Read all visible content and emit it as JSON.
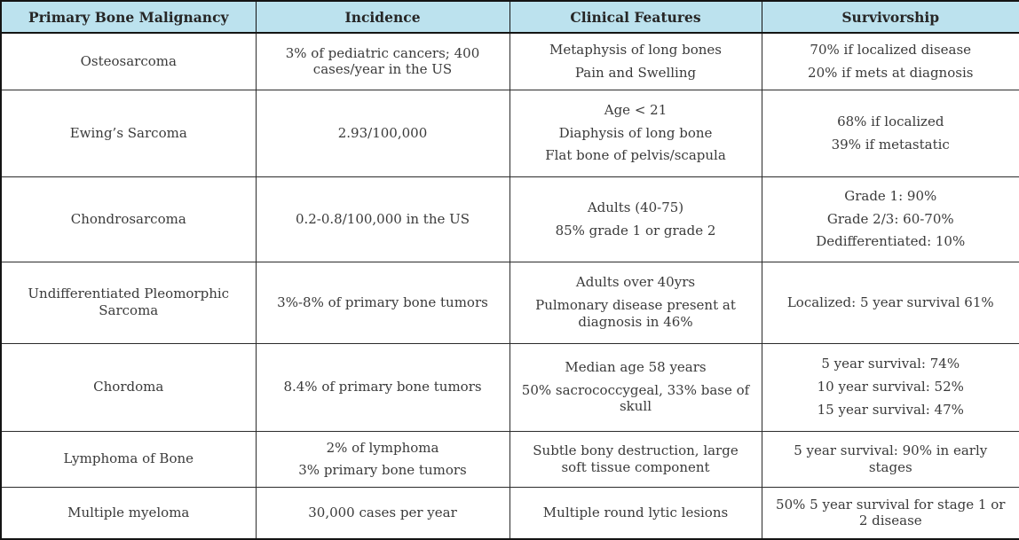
{
  "table": {
    "title": "Primary Bone Malignancy table",
    "header_bg_color": "#bce2ee",
    "border_color": "#141414",
    "text_color": "#3a3a3a",
    "headers": [
      "Primary Bone Malignancy",
      "Incidence",
      "Clinical Features",
      "Survivorship"
    ],
    "rows": [
      {
        "cells": [
          [
            "Osteosarcoma"
          ],
          [
            "3% of pediatric cancers; 400 cases/year in the US"
          ],
          [
            "Metaphysis of long bones",
            "Pain and Swelling"
          ],
          [
            "70% if localized disease",
            "20% if mets at diagnosis"
          ]
        ]
      },
      {
        "cells": [
          [
            "Ewing’s Sarcoma"
          ],
          [
            "2.93/100,000"
          ],
          [
            "Age < 21",
            "Diaphysis of long bone",
            "Flat bone of pelvis/scapula"
          ],
          [
            "68% if localized",
            "39% if metastatic"
          ]
        ]
      },
      {
        "cells": [
          [
            "Chondrosarcoma"
          ],
          [
            "0.2-0.8/100,000 in the US"
          ],
          [
            "Adults (40-75)",
            "85% grade 1 or grade 2"
          ],
          [
            "Grade 1: 90%",
            "Grade 2/3: 60-70%",
            "Dedifferentiated: 10%"
          ]
        ]
      },
      {
        "cells": [
          [
            "Undifferentiated Pleomorphic Sarcoma"
          ],
          [
            "3%-8%  of primary bone tumors"
          ],
          [
            "Adults over 40yrs",
            "Pulmonary disease present at diagnosis in 46%"
          ],
          [
            "Localized: 5 year survival 61%"
          ]
        ]
      },
      {
        "cells": [
          [
            "Chordoma"
          ],
          [
            "8.4% of primary bone tumors"
          ],
          [
            "Median age 58 years",
            "50% sacrococcygeal, 33% base of skull"
          ],
          [
            "5 year survival: 74%",
            "10 year survival: 52%",
            "15 year survival: 47%"
          ]
        ]
      },
      {
        "cells": [
          [
            "Lymphoma of Bone"
          ],
          [
            "2% of lymphoma",
            "3% primary bone tumors"
          ],
          [
            "Subtle bony destruction, large soft tissue component"
          ],
          [
            "5 year survival: 90% in early stages"
          ]
        ]
      },
      {
        "cells": [
          [
            "Multiple myeloma"
          ],
          [
            "30,000 cases per year"
          ],
          [
            "Multiple round lytic lesions"
          ],
          [
            "50% 5 year survival for stage 1 or 2 disease"
          ]
        ]
      }
    ]
  }
}
